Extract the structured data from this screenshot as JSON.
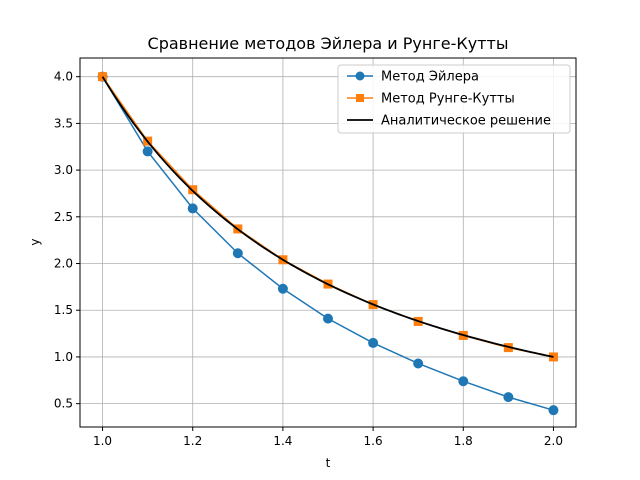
{
  "chart_data": {
    "type": "line",
    "title": "Сравнение методов Эйлера и Рунге-Кутты",
    "xlabel": "t",
    "ylabel": "y",
    "xlim": [
      0.95,
      2.05
    ],
    "ylim": [
      0.25,
      4.2
    ],
    "xticks": [
      1.0,
      1.2,
      1.4,
      1.6,
      1.8,
      2.0
    ],
    "xtick_labels": [
      "1.0",
      "1.2",
      "1.4",
      "1.6",
      "1.8",
      "2.0"
    ],
    "yticks": [
      0.5,
      1.0,
      1.5,
      2.0,
      2.5,
      3.0,
      3.5,
      4.0
    ],
    "ytick_labels": [
      "0.5",
      "1.0",
      "1.5",
      "2.0",
      "2.5",
      "3.0",
      "3.5",
      "4.0"
    ],
    "grid": true,
    "legend_position": "top-right",
    "x": [
      1.0,
      1.1,
      1.2,
      1.3,
      1.4,
      1.5,
      1.6,
      1.7,
      1.8,
      1.9,
      2.0
    ],
    "series": [
      {
        "name": "Метод Эйлера",
        "color": "#1f77b4",
        "marker": "circle",
        "values": [
          4.0,
          3.2,
          2.59,
          2.11,
          1.73,
          1.41,
          1.15,
          0.93,
          0.74,
          0.57,
          0.43
        ]
      },
      {
        "name": "Метод Рунге-Кутты",
        "color": "#ff7f0e",
        "marker": "square",
        "values": [
          4.0,
          3.31,
          2.79,
          2.37,
          2.04,
          1.78,
          1.56,
          1.38,
          1.23,
          1.1,
          1.0
        ]
      },
      {
        "name": "Аналитическое решение",
        "color": "#000000",
        "marker": "none",
        "function": "4/t^2",
        "domain": [
          1.0,
          2.0
        ]
      }
    ]
  }
}
